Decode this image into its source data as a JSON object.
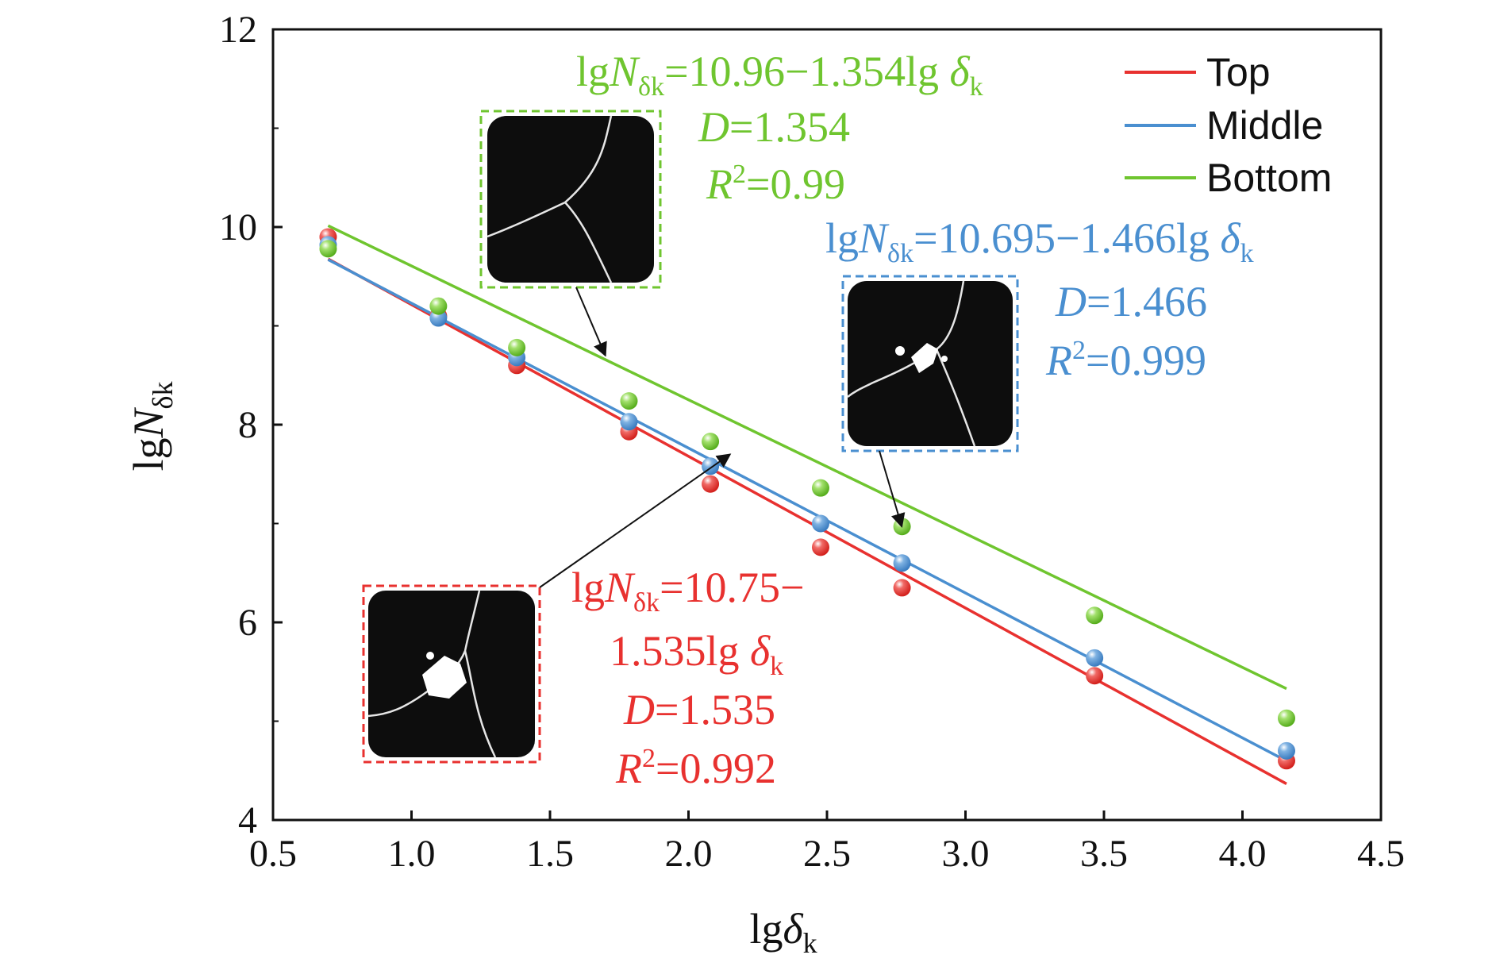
{
  "chart_data": {
    "type": "scatter",
    "xlabel": "lgδk",
    "ylabel": "lgNδk",
    "xlim": [
      0.5,
      4.5
    ],
    "ylim": [
      4,
      12
    ],
    "xticks": [
      "0.5",
      "1.0",
      "1.5",
      "2.0",
      "2.5",
      "3.0",
      "3.5",
      "4.0",
      "4.5"
    ],
    "yticks": [
      "4",
      "6",
      "8",
      "10",
      "12"
    ],
    "legend_position": "top-right",
    "series": [
      {
        "name": "Top",
        "color": "#e8312f",
        "x": [
          0.699,
          1.097,
          1.38,
          1.785,
          2.079,
          2.477,
          2.771,
          3.466,
          4.159
        ],
        "y": [
          9.9,
          9.1,
          8.6,
          7.93,
          7.4,
          6.76,
          6.35,
          5.46,
          4.6
        ],
        "fit": {
          "intercept": 10.75,
          "slope": -1.535
        }
      },
      {
        "name": "Middle",
        "color": "#4a8fd0",
        "x": [
          0.699,
          1.097,
          1.38,
          1.785,
          2.079,
          2.477,
          2.771,
          3.466,
          4.159
        ],
        "y": [
          9.82,
          9.08,
          8.68,
          8.03,
          7.58,
          7.0,
          6.6,
          5.64,
          4.7
        ],
        "fit": {
          "intercept": 10.695,
          "slope": -1.466
        }
      },
      {
        "name": "Bottom",
        "color": "#6fc52f",
        "x": [
          0.699,
          1.097,
          1.38,
          1.785,
          2.079,
          2.477,
          2.771,
          3.466,
          4.159
        ],
        "y": [
          9.78,
          9.2,
          8.78,
          8.24,
          7.83,
          7.36,
          6.97,
          6.07,
          5.03
        ],
        "fit": {
          "intercept": 10.96,
          "slope": -1.354
        }
      }
    ],
    "annotations": [
      {
        "series": "Bottom",
        "color": "#6fc52f",
        "equation": {
          "lead": "lg",
          "var": "N",
          "sub": "δk",
          "rest": "=10.96−1.354lg ",
          "var2": "δ",
          "sub2": "k"
        },
        "d_label": "D",
        "d_value": "=1.354",
        "r_label": "R",
        "r_sup": "2",
        "r_value": "=0.99"
      },
      {
        "series": "Middle",
        "color": "#4a8fd0",
        "equation": {
          "lead": "lg",
          "var": "N",
          "sub": "δk",
          "rest": "=10.695−1.466lg ",
          "var2": "δ",
          "sub2": "k"
        },
        "d_label": "D",
        "d_value": "=1.466",
        "r_label": "R",
        "r_sup": "2",
        "r_value": "=0.999"
      },
      {
        "series": "Top",
        "color": "#e8312f",
        "equation_line1": {
          "lead": "lg",
          "var": "N",
          "sub": "δk",
          "rest": "=10.75−"
        },
        "equation_line2": {
          "lead": "1.535lg ",
          "var2": "δ",
          "sub2": "k"
        },
        "d_label": "D",
        "d_value": "=1.535",
        "r_label": "R",
        "r_sup": "2",
        "r_value": "=0.992"
      }
    ],
    "insets": [
      {
        "name": "bottom-crack-image",
        "border_color": "#6fc52f",
        "points_to": {
          "x": 1.7,
          "y": 8.7
        }
      },
      {
        "name": "middle-crack-image",
        "border_color": "#4a8fd0",
        "points_to": {
          "x": 2.77,
          "y": 6.97
        }
      },
      {
        "name": "top-crack-image",
        "border_color": "#e8312f",
        "points_to": {
          "x": 2.15,
          "y": 7.7
        }
      }
    ]
  }
}
